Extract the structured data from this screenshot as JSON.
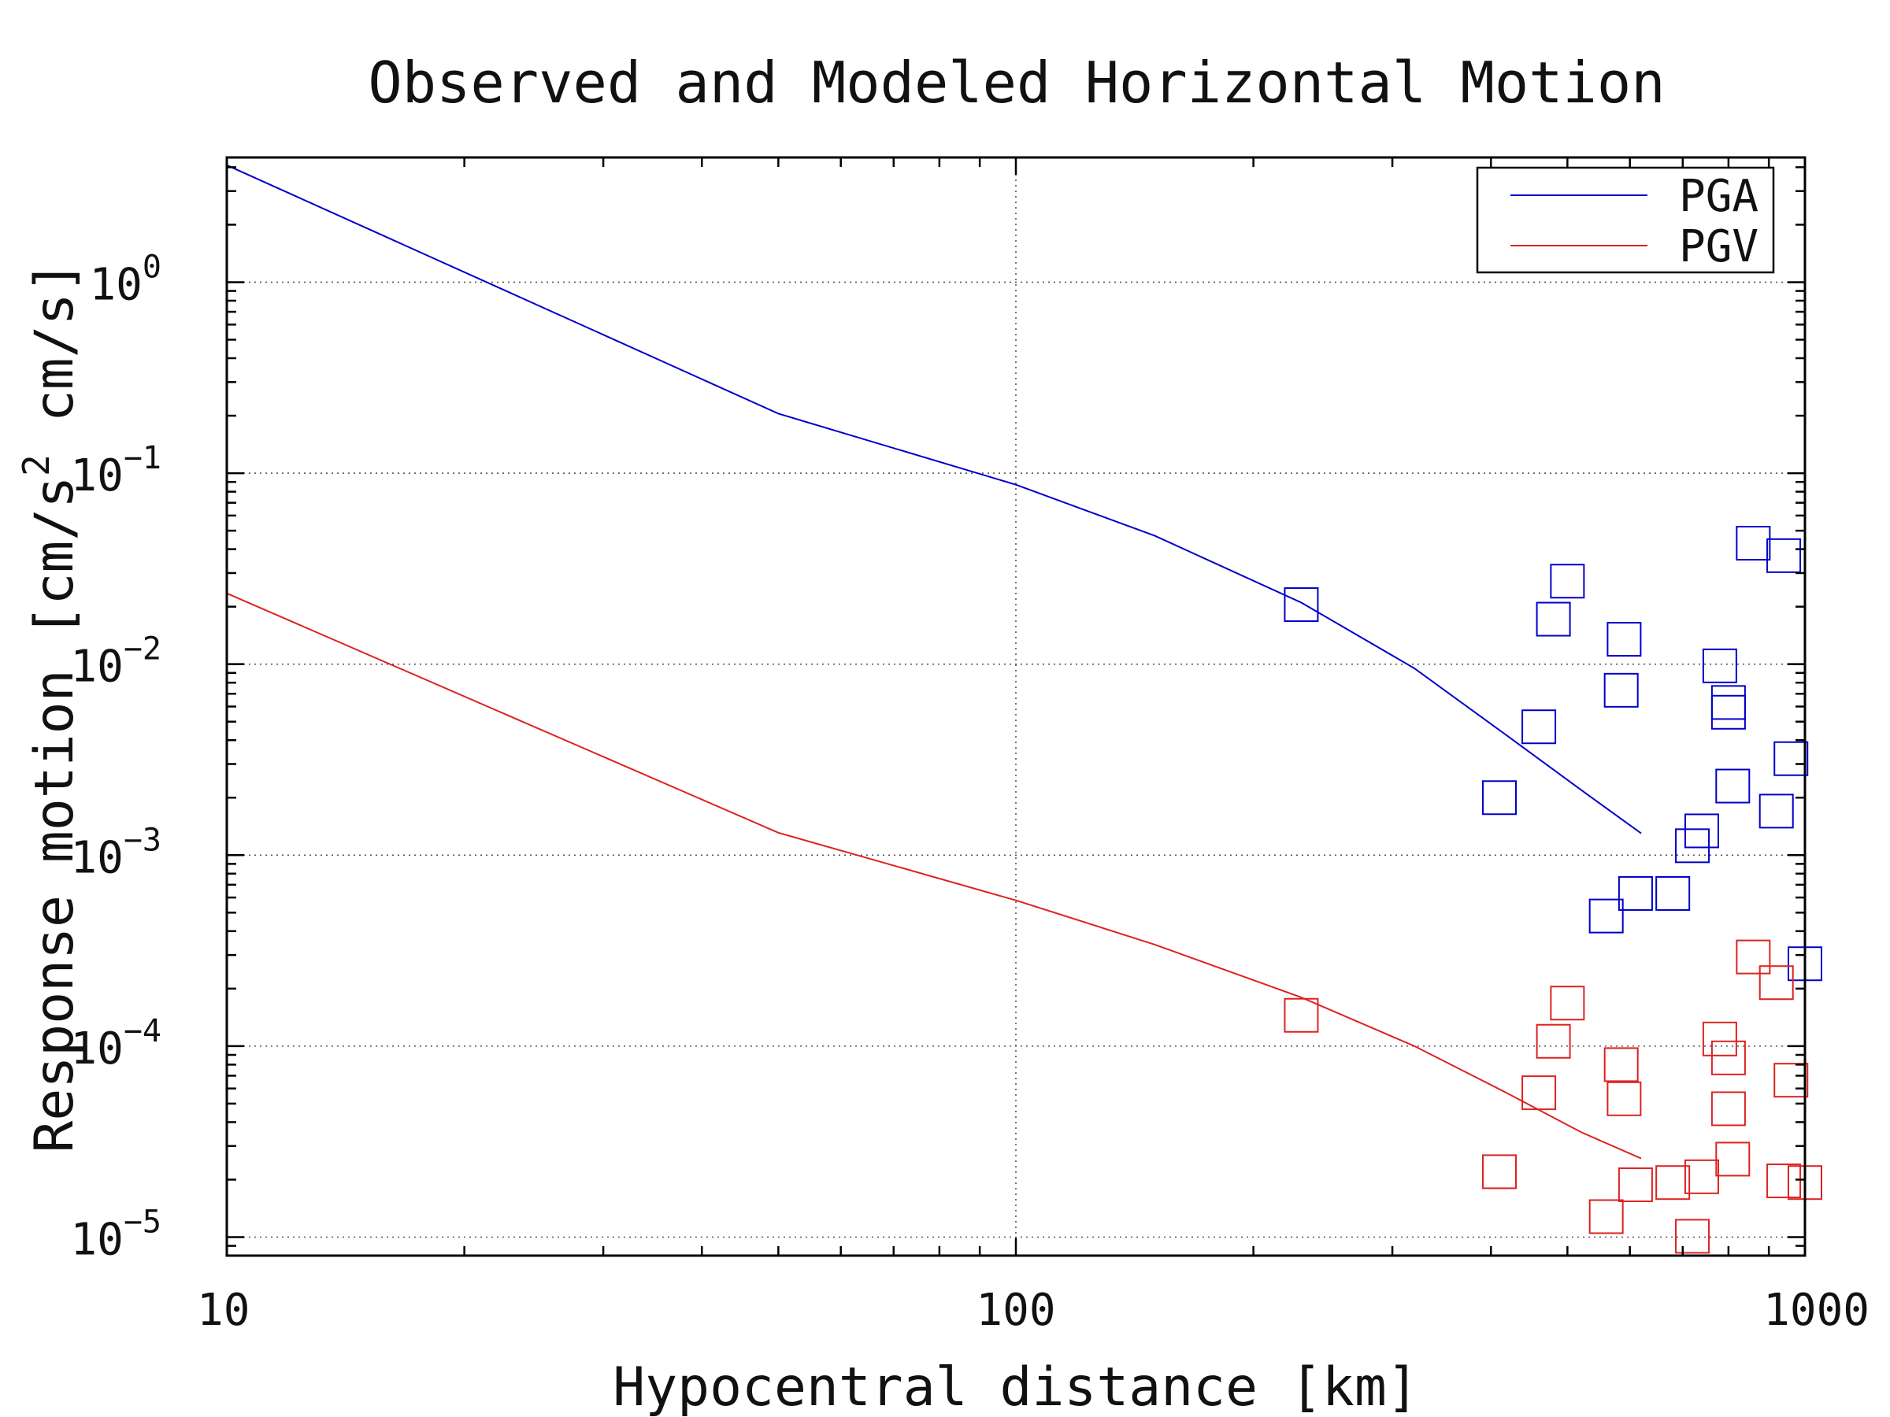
{
  "chart_data": {
    "type": "scatter",
    "title": "Observed and Modeled Horizontal Motion",
    "xlabel": "Hypocentral distance [km]",
    "ylabel": {
      "prefix": "Response motion [cm/s",
      "sup": "2",
      "suffix": " cm/s]"
    },
    "xscale": "log",
    "yscale": "log",
    "xlim": [
      10,
      1000
    ],
    "ylim": [
      8e-06,
      4.5
    ],
    "x_ticks": [
      {
        "value": 10,
        "label": "10"
      },
      {
        "value": 100,
        "label": "100"
      },
      {
        "value": 1000,
        "label": "1000"
      }
    ],
    "y_ticks": [
      {
        "value": 1,
        "base": "10",
        "exp": "0"
      },
      {
        "value": 0.1,
        "base": "10",
        "exp": "−1"
      },
      {
        "value": 0.01,
        "base": "10",
        "exp": "−2"
      },
      {
        "value": 0.001,
        "base": "10",
        "exp": "−3"
      },
      {
        "value": 0.0001,
        "base": "10",
        "exp": "−4"
      },
      {
        "value": 1e-05,
        "base": "10",
        "exp": "−5"
      }
    ],
    "grid": true,
    "legend_position": "top-right",
    "series": [
      {
        "name": "PGA",
        "color": "#0000cc",
        "model": {
          "x": [
            10,
            50,
            100,
            150,
            230,
            320,
            420,
            520,
            620
          ],
          "y": [
            4.1,
            0.205,
            0.087,
            0.047,
            0.021,
            0.0095,
            0.0042,
            0.0022,
            0.0013
          ]
        },
        "observed": {
          "x": [
            230,
            410,
            460,
            480,
            500,
            560,
            585,
            590,
            610,
            680,
            720,
            740,
            780,
            800,
            800,
            810,
            860,
            920,
            940,
            960,
            1000
          ],
          "y": [
            0.0205,
            0.002,
            0.0047,
            0.0172,
            0.0272,
            0.00048,
            0.0073,
            0.0135,
            0.00063,
            0.00063,
            0.00112,
            0.00134,
            0.0098,
            0.0063,
            0.0056,
            0.0023,
            0.043,
            0.0017,
            0.037,
            0.0032,
            0.00027
          ]
        }
      },
      {
        "name": "PGV",
        "color": "#dd2222",
        "model": {
          "x": [
            10,
            50,
            100,
            150,
            230,
            320,
            420,
            520,
            620
          ],
          "y": [
            0.0235,
            0.00131,
            0.00058,
            0.00034,
            0.00018,
            0.0001,
            5.65e-05,
            3.55e-05,
            2.58e-05
          ]
        },
        "observed": {
          "x": [
            230,
            410,
            460,
            480,
            500,
            560,
            585,
            590,
            610,
            680,
            720,
            740,
            780,
            800,
            800,
            810,
            860,
            920,
            940,
            960,
            1000
          ],
          "y": [
            0.000145,
            2.2e-05,
            5.7e-05,
            0.000106,
            0.000168,
            1.28e-05,
            8e-05,
            5.3e-05,
            1.88e-05,
            1.93e-05,
            1.01e-05,
            2.07e-05,
            0.000109,
            4.7e-05,
            8.68e-05,
            2.56e-05,
            0.000293,
            0.000215,
            1.97e-05,
            6.63e-05,
            1.93e-05
          ]
        }
      }
    ]
  }
}
